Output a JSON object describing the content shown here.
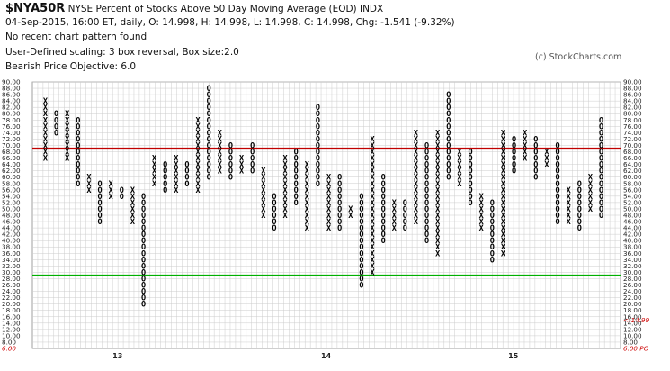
{
  "header": {
    "symbol": "$NYA50R",
    "description": "NYSE Percent of Stocks Above 50 Day Moving Average (EOD)  INDX",
    "quote_line": "04-Sep-2015, 16:00 ET, daily, O: 14.998, H: 14.998, L: 14.998, C: 14.998, Chg: -1.541 (-9.32%)",
    "pattern_line": "No recent chart pattern found",
    "scaling_line": "User-Defined scaling: 3 box reversal, Box size:2.0",
    "objective_line": "Bearish Price Objective: 6.0"
  },
  "copyright": "(c) StockCharts.com",
  "colors": {
    "red_line": "#c00000",
    "green_line": "#00b000",
    "grid": "#cccccc",
    "month_marker": "#cc0000"
  },
  "chart_data": {
    "type": "point-and-figure",
    "box_size": 2.0,
    "reversal": 3,
    "ylim": [
      6,
      90
    ],
    "y_ticks": [
      90,
      88,
      86,
      84,
      82,
      80,
      78,
      76,
      74,
      72,
      70,
      68,
      66,
      64,
      62,
      60,
      58,
      56,
      54,
      52,
      50,
      48,
      46,
      44,
      42,
      40,
      38,
      36,
      34,
      32,
      30,
      28,
      26,
      24,
      22,
      20,
      18,
      16,
      14,
      12,
      10,
      8
    ],
    "y_tick_labels": [
      "90.00",
      "88.00",
      "86.00",
      "84.00",
      "82.00",
      "80.00",
      "78.00",
      "76.00",
      "74.00",
      "72.00",
      "70.00",
      "68.00",
      "66.00",
      "64.00",
      "62.00",
      "60.00",
      "58.00",
      "56.00",
      "54.00",
      "52.00",
      "50.00",
      "48.00",
      "46.00",
      "44.00",
      "42.00",
      "40.00",
      "38.00",
      "36.00",
      "34.00",
      "32.00",
      "30.00",
      "28.00",
      "26.00",
      "24.00",
      "22.00",
      "20.00",
      "18.00",
      "16.00",
      "14.00",
      "12.00",
      "10.00",
      "8.00"
    ],
    "left_extra_label": "6.00",
    "right_extra_label": "6.00 PO",
    "last_price_label": "14.99",
    "year_labels": [
      {
        "label": "13",
        "column": 15
      },
      {
        "label": "14",
        "column": 54
      },
      {
        "label": "15",
        "column": 89
      }
    ],
    "reference_lines": [
      {
        "value": 69,
        "color": "red"
      },
      {
        "value": 29,
        "color": "green"
      }
    ],
    "columns": [
      {
        "t": "X",
        "from": 66,
        "to": 84
      },
      {
        "t": "O",
        "from": 74,
        "to": 80
      },
      {
        "t": "X",
        "from": 66,
        "to": 80
      },
      {
        "t": "O",
        "from": 58,
        "to": 78
      },
      {
        "t": "X",
        "from": 56,
        "to": 60
      },
      {
        "t": "O",
        "from": 46,
        "to": 58
      },
      {
        "t": "X",
        "from": 54,
        "to": 58
      },
      {
        "t": "O",
        "from": 54,
        "to": 56
      },
      {
        "t": "X",
        "from": 46,
        "to": 56
      },
      {
        "t": "O",
        "from": 20,
        "to": 54
      },
      {
        "t": "X",
        "from": 58,
        "to": 66
      },
      {
        "t": "O",
        "from": 56,
        "to": 64
      },
      {
        "t": "X",
        "from": 56,
        "to": 66
      },
      {
        "t": "O",
        "from": 58,
        "to": 64
      },
      {
        "t": "X",
        "from": 56,
        "to": 78
      },
      {
        "t": "O",
        "from": 60,
        "to": 88
      },
      {
        "t": "X",
        "from": 62,
        "to": 74
      },
      {
        "t": "O",
        "from": 60,
        "to": 70
      },
      {
        "t": "X",
        "from": 62,
        "to": 66
      },
      {
        "t": "O",
        "from": 62,
        "to": 70
      },
      {
        "t": "X",
        "from": 48,
        "to": 62
      },
      {
        "t": "O",
        "from": 44,
        "to": 54
      },
      {
        "t": "X",
        "from": 48,
        "to": 66
      },
      {
        "t": "O",
        "from": 52,
        "to": 68
      },
      {
        "t": "X",
        "from": 44,
        "to": 64
      },
      {
        "t": "O",
        "from": 58,
        "to": 82
      },
      {
        "t": "X",
        "from": 44,
        "to": 60
      },
      {
        "t": "O",
        "from": 44,
        "to": 60
      },
      {
        "t": "X",
        "from": 48,
        "to": 50
      },
      {
        "t": "O",
        "from": 26,
        "to": 54
      },
      {
        "t": "X",
        "from": 30,
        "to": 72
      },
      {
        "t": "O",
        "from": 40,
        "to": 60
      },
      {
        "t": "X",
        "from": 44,
        "to": 52
      },
      {
        "t": "O",
        "from": 44,
        "to": 52
      },
      {
        "t": "X",
        "from": 46,
        "to": 74
      },
      {
        "t": "O",
        "from": 40,
        "to": 70
      },
      {
        "t": "X",
        "from": 36,
        "to": 74
      },
      {
        "t": "O",
        "from": 60,
        "to": 86
      },
      {
        "t": "X",
        "from": 58,
        "to": 68
      },
      {
        "t": "O",
        "from": 52,
        "to": 68
      },
      {
        "t": "X",
        "from": 44,
        "to": 54
      },
      {
        "t": "O",
        "from": 34,
        "to": 52
      },
      {
        "t": "X",
        "from": 36,
        "to": 74
      },
      {
        "t": "O",
        "from": 62,
        "to": 72
      },
      {
        "t": "X",
        "from": 66,
        "to": 74
      },
      {
        "t": "O",
        "from": 60,
        "to": 72
      },
      {
        "t": "X",
        "from": 64,
        "to": 68
      },
      {
        "t": "O",
        "from": 46,
        "to": 70
      },
      {
        "t": "X",
        "from": 46,
        "to": 56
      },
      {
        "t": "O",
        "from": 44,
        "to": 58
      },
      {
        "t": "X",
        "from": 50,
        "to": 60
      },
      {
        "t": "O",
        "from": 48,
        "to": 78
      }
    ]
  }
}
